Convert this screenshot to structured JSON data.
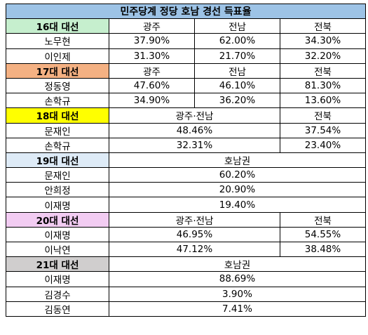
{
  "title": "민주당계 정당 호남 경선 득표율",
  "colors": {
    "title_bg": "#9dc3e6",
    "e16": "#c6efce",
    "e17": "#f4b183",
    "e18": "#ffff00",
    "e19": "#deebf7",
    "e20": "#f2ccf2",
    "e21": "#d0cece"
  },
  "e16": {
    "label": "16대 대선",
    "headers": [
      "광주",
      "전남",
      "전북"
    ],
    "rows": [
      {
        "name": "노무현",
        "values": [
          "37.90%",
          "62.00%",
          "34.30%"
        ]
      },
      {
        "name": "이인제",
        "values": [
          "31.30%",
          "21.70%",
          "32.20%"
        ]
      }
    ]
  },
  "e17": {
    "label": "17대 대선",
    "headers": [
      "광주",
      "전남",
      "전북"
    ],
    "rows": [
      {
        "name": "정동영",
        "values": [
          "47.60%",
          "46.10%",
          "81.30%"
        ]
      },
      {
        "name": "손학규",
        "values": [
          "34.90%",
          "36.20%",
          "13.60%"
        ]
      }
    ]
  },
  "e18": {
    "label": "18대 대선",
    "headers": [
      "광주·전남",
      "전북"
    ],
    "rows": [
      {
        "name": "문재인",
        "values": [
          "48.46%",
          "37.54%"
        ]
      },
      {
        "name": "손학규",
        "values": [
          "32.31%",
          "23.40%"
        ]
      }
    ]
  },
  "e19": {
    "label": "19대 대선",
    "headers": [
      "호남권"
    ],
    "rows": [
      {
        "name": "문재인",
        "values": [
          "60.20%"
        ]
      },
      {
        "name": "안희정",
        "values": [
          "20.90%"
        ]
      },
      {
        "name": "이재명",
        "values": [
          "19.40%"
        ]
      }
    ]
  },
  "e20": {
    "label": "20대 대선",
    "headers": [
      "광주·전남",
      "전북"
    ],
    "rows": [
      {
        "name": "이재명",
        "values": [
          "46.95%",
          "54.55%"
        ]
      },
      {
        "name": "이낙연",
        "values": [
          "47.12%",
          "38.48%"
        ]
      }
    ]
  },
  "e21": {
    "label": "21대 대선",
    "headers": [
      "호남권"
    ],
    "rows": [
      {
        "name": "이재명",
        "values": [
          "88.69%"
        ]
      },
      {
        "name": "김경수",
        "values": [
          "3.90%"
        ]
      },
      {
        "name": "김동연",
        "values": [
          "7.41%"
        ]
      }
    ]
  }
}
